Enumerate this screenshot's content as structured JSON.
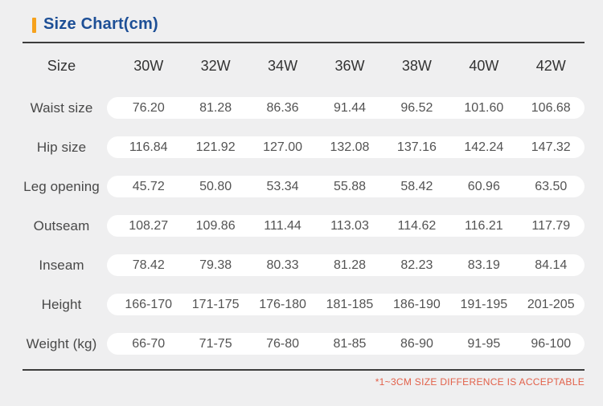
{
  "title": "Size Chart(cm)",
  "colors": {
    "accent_orange": "#f6a21d",
    "title_blue": "#1d4f96",
    "note_red": "#e2614a",
    "page_background": "#efeff0",
    "pill_background": "#ffffff"
  },
  "footer_note": "*1~3CM SIZE DIFFERENCE IS ACCEPTABLE",
  "chart_data": {
    "type": "table",
    "title": "Size Chart(cm)",
    "header_label": "Size",
    "columns": [
      "30W",
      "32W",
      "34W",
      "36W",
      "38W",
      "40W",
      "42W"
    ],
    "rows": [
      {
        "label": "Waist size",
        "values": [
          "76.20",
          "81.28",
          "86.36",
          "91.44",
          "96.52",
          "101.60",
          "106.68"
        ]
      },
      {
        "label": "Hip size",
        "values": [
          "116.84",
          "121.92",
          "127.00",
          "132.08",
          "137.16",
          "142.24",
          "147.32"
        ]
      },
      {
        "label": "Leg opening",
        "values": [
          "45.72",
          "50.80",
          "53.34",
          "55.88",
          "58.42",
          "60.96",
          "63.50"
        ]
      },
      {
        "label": "Outseam",
        "values": [
          "108.27",
          "109.86",
          "111.44",
          "113.03",
          "114.62",
          "116.21",
          "117.79"
        ]
      },
      {
        "label": "Inseam",
        "values": [
          "78.42",
          "79.38",
          "80.33",
          "81.28",
          "82.23",
          "83.19",
          "84.14"
        ]
      },
      {
        "label": "Height",
        "values": [
          "166-170",
          "171-175",
          "176-180",
          "181-185",
          "186-190",
          "191-195",
          "201-205"
        ]
      },
      {
        "label": "Weight (kg)",
        "values": [
          "66-70",
          "71-75",
          "76-80",
          "81-85",
          "86-90",
          "91-95",
          "96-100"
        ]
      }
    ]
  }
}
